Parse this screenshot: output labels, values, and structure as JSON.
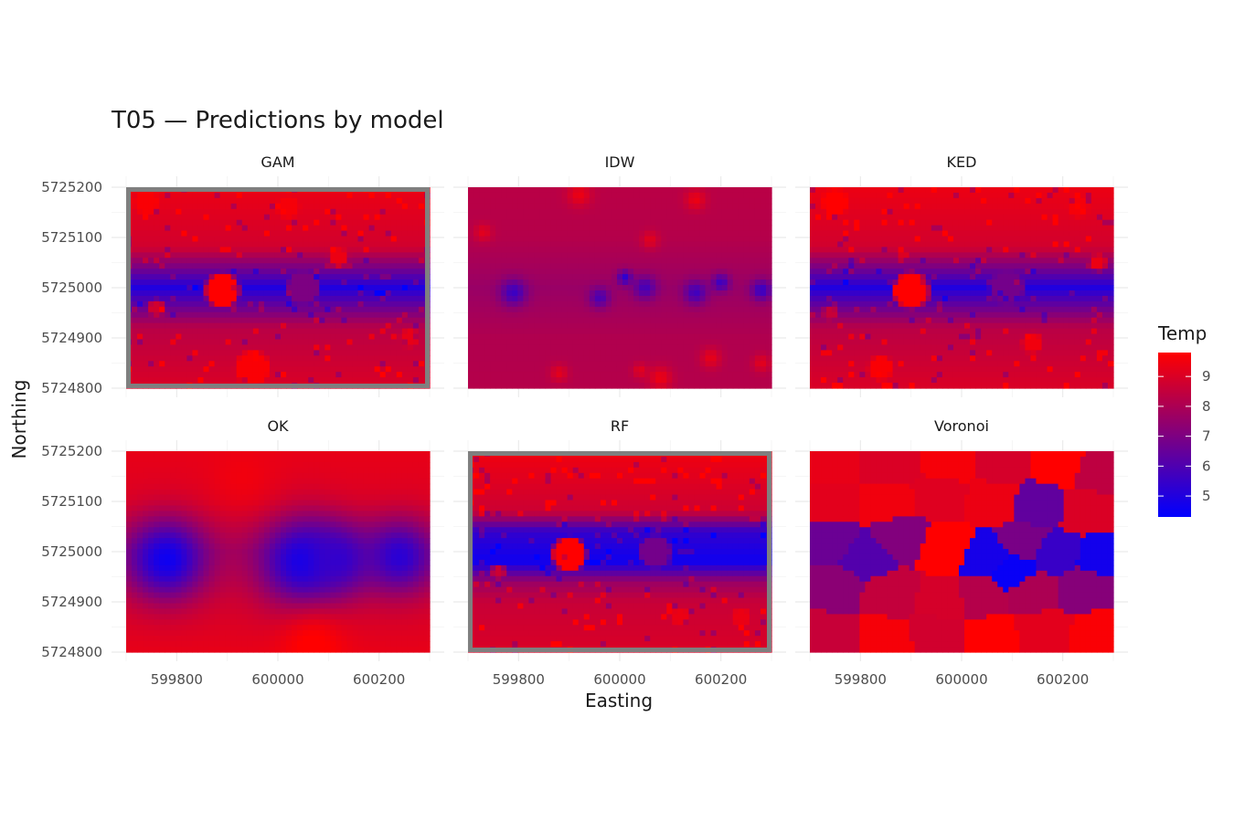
{
  "chart_data": {
    "type": "heatmap",
    "title": "T05 — Predictions by model",
    "xlabel": "Easting",
    "ylabel": "Northing",
    "xlim": [
      599700,
      600300
    ],
    "ylim": [
      5724800,
      5725200
    ],
    "x_ticks": [
      599800,
      600000,
      600200
    ],
    "x_tick_labels": [
      "599800",
      "600000",
      "600200"
    ],
    "y_ticks": [
      5724800,
      5724900,
      5725000,
      5725100,
      5725200
    ],
    "y_tick_labels": [
      "5724800",
      "5724900",
      "5725000",
      "5725100",
      "5725200"
    ],
    "grid": true,
    "legend": {
      "title": "Temp",
      "position": "right",
      "range": [
        4.3,
        9.8
      ],
      "ticks": [
        5,
        6,
        7,
        8,
        9
      ],
      "tick_labels": [
        "5",
        "6",
        "7",
        "8",
        "9"
      ],
      "low_color": "#0000ff",
      "high_color": "#ff0000"
    },
    "panels": [
      {
        "name": "GAM",
        "highlighted": true,
        "style": "blocky",
        "base": [
          {
            "y": 5725200,
            "v": 9.4
          },
          {
            "y": 5725080,
            "v": 8.8
          },
          {
            "y": 5725000,
            "v": 5.0
          },
          {
            "y": 5724920,
            "v": 8.3
          },
          {
            "y": 5724800,
            "v": 9.0
          }
        ],
        "hotspots": [
          {
            "x": 599890,
            "y": 5724995,
            "r": 30,
            "v": 9.8
          },
          {
            "x": 600050,
            "y": 5725000,
            "r": 28,
            "v": 7.0
          },
          {
            "x": 599760,
            "y": 5724960,
            "r": 12,
            "v": 8.8
          },
          {
            "x": 599950,
            "y": 5724840,
            "r": 30,
            "v": 9.7
          },
          {
            "x": 599740,
            "y": 5725170,
            "r": 20,
            "v": 9.7
          },
          {
            "x": 600020,
            "y": 5725160,
            "r": 18,
            "v": 9.6
          },
          {
            "x": 600120,
            "y": 5725060,
            "r": 15,
            "v": 9.4
          },
          {
            "x": 600260,
            "y": 5724900,
            "r": 14,
            "v": 9.3
          }
        ],
        "speckle": 0.6
      },
      {
        "name": "IDW",
        "highlighted": false,
        "style": "smooth",
        "base": [
          {
            "y": 5725200,
            "v": 8.3
          },
          {
            "y": 5725100,
            "v": 8.2
          },
          {
            "y": 5725000,
            "v": 7.6
          },
          {
            "y": 5724900,
            "v": 8.1
          },
          {
            "y": 5724800,
            "v": 8.2
          }
        ],
        "hotspots": [
          {
            "x": 599790,
            "y": 5724990,
            "r": 18,
            "v": 5.6
          },
          {
            "x": 599960,
            "y": 5724980,
            "r": 14,
            "v": 5.9
          },
          {
            "x": 600050,
            "y": 5725000,
            "r": 16,
            "v": 5.8
          },
          {
            "x": 600150,
            "y": 5724990,
            "r": 16,
            "v": 5.7
          },
          {
            "x": 600200,
            "y": 5725010,
            "r": 12,
            "v": 5.6
          },
          {
            "x": 600280,
            "y": 5724995,
            "r": 14,
            "v": 5.5
          },
          {
            "x": 600010,
            "y": 5725020,
            "r": 10,
            "v": 5.3
          },
          {
            "x": 599920,
            "y": 5725185,
            "r": 16,
            "v": 9.4
          },
          {
            "x": 600150,
            "y": 5725175,
            "r": 14,
            "v": 9.4
          },
          {
            "x": 599730,
            "y": 5725110,
            "r": 12,
            "v": 9.2
          },
          {
            "x": 600060,
            "y": 5725095,
            "r": 12,
            "v": 9.2
          },
          {
            "x": 600080,
            "y": 5724820,
            "r": 16,
            "v": 9.4
          },
          {
            "x": 600180,
            "y": 5724860,
            "r": 14,
            "v": 9.3
          },
          {
            "x": 599880,
            "y": 5724830,
            "r": 12,
            "v": 9.2
          },
          {
            "x": 600040,
            "y": 5724835,
            "r": 10,
            "v": 9.2
          },
          {
            "x": 600280,
            "y": 5724850,
            "r": 12,
            "v": 9.2
          }
        ],
        "speckle": 0.0
      },
      {
        "name": "KED",
        "highlighted": false,
        "style": "blocky",
        "base": [
          {
            "y": 5725200,
            "v": 9.4
          },
          {
            "y": 5725080,
            "v": 8.8
          },
          {
            "y": 5725000,
            "v": 5.0
          },
          {
            "y": 5724920,
            "v": 8.3
          },
          {
            "y": 5724800,
            "v": 9.0
          }
        ],
        "hotspots": [
          {
            "x": 599900,
            "y": 5724995,
            "r": 32,
            "v": 9.8
          },
          {
            "x": 600090,
            "y": 5725000,
            "r": 30,
            "v": 6.8
          },
          {
            "x": 599750,
            "y": 5725170,
            "r": 22,
            "v": 9.8
          },
          {
            "x": 599840,
            "y": 5724840,
            "r": 20,
            "v": 9.7
          },
          {
            "x": 600140,
            "y": 5724890,
            "r": 16,
            "v": 9.5
          },
          {
            "x": 600230,
            "y": 5725160,
            "r": 16,
            "v": 9.6
          },
          {
            "x": 599740,
            "y": 5724950,
            "r": 10,
            "v": 8.6
          },
          {
            "x": 600270,
            "y": 5725050,
            "r": 12,
            "v": 9.4
          }
        ],
        "speckle": 0.6
      },
      {
        "name": "OK",
        "highlighted": false,
        "style": "smooth",
        "base": [
          {
            "y": 5725200,
            "v": 9.3
          },
          {
            "y": 5725100,
            "v": 9.1
          },
          {
            "y": 5725000,
            "v": 8.2
          },
          {
            "y": 5724900,
            "v": 8.9
          },
          {
            "y": 5724800,
            "v": 9.3
          }
        ],
        "hotspots": [
          {
            "x": 599780,
            "y": 5724985,
            "r": 55,
            "v": 4.6
          },
          {
            "x": 600050,
            "y": 5724980,
            "r": 60,
            "v": 4.7
          },
          {
            "x": 600240,
            "y": 5724990,
            "r": 50,
            "v": 5.2
          },
          {
            "x": 600120,
            "y": 5724985,
            "r": 45,
            "v": 5.4
          },
          {
            "x": 600070,
            "y": 5724810,
            "r": 45,
            "v": 9.9
          },
          {
            "x": 599930,
            "y": 5725150,
            "r": 45,
            "v": 9.5
          }
        ],
        "speckle": 0.0
      },
      {
        "name": "RF",
        "highlighted": true,
        "style": "blocky",
        "base": [
          {
            "y": 5725200,
            "v": 9.5
          },
          {
            "y": 5725080,
            "v": 8.7
          },
          {
            "y": 5725040,
            "v": 5.4
          },
          {
            "y": 5724980,
            "v": 4.6
          },
          {
            "y": 5724940,
            "v": 7.6
          },
          {
            "y": 5724900,
            "v": 8.6
          },
          {
            "y": 5724800,
            "v": 9.0
          }
        ],
        "hotspots": [
          {
            "x": 599900,
            "y": 5724995,
            "r": 30,
            "v": 9.8
          },
          {
            "x": 600070,
            "y": 5725000,
            "r": 28,
            "v": 6.8
          },
          {
            "x": 599760,
            "y": 5724960,
            "r": 10,
            "v": 8.7
          },
          {
            "x": 600120,
            "y": 5724870,
            "r": 14,
            "v": 9.4
          },
          {
            "x": 600240,
            "y": 5724870,
            "r": 14,
            "v": 9.4
          }
        ],
        "speckle": 0.6
      },
      {
        "name": "Voronoi",
        "highlighted": false,
        "style": "voronoi",
        "sites": [
          {
            "x": 599740,
            "y": 5725180,
            "v": 9.3
          },
          {
            "x": 599860,
            "y": 5725170,
            "v": 9.0
          },
          {
            "x": 599980,
            "y": 5725180,
            "v": 9.6
          },
          {
            "x": 600080,
            "y": 5725175,
            "v": 8.9
          },
          {
            "x": 600190,
            "y": 5725180,
            "v": 9.8
          },
          {
            "x": 600280,
            "y": 5725160,
            "v": 8.4
          },
          {
            "x": 599740,
            "y": 5725100,
            "v": 9.2
          },
          {
            "x": 599850,
            "y": 5725100,
            "v": 9.5
          },
          {
            "x": 599960,
            "y": 5725110,
            "v": 9.1
          },
          {
            "x": 600060,
            "y": 5725100,
            "v": 9.4
          },
          {
            "x": 600150,
            "y": 5725090,
            "v": 6.4
          },
          {
            "x": 600250,
            "y": 5725080,
            "v": 9.0
          },
          {
            "x": 599740,
            "y": 5725020,
            "v": 6.6
          },
          {
            "x": 599810,
            "y": 5724990,
            "v": 6.1
          },
          {
            "x": 599880,
            "y": 5725030,
            "v": 7.1
          },
          {
            "x": 599970,
            "y": 5725010,
            "v": 9.9
          },
          {
            "x": 600050,
            "y": 5724990,
            "v": 4.8
          },
          {
            "x": 600120,
            "y": 5725020,
            "v": 6.9
          },
          {
            "x": 600190,
            "y": 5724995,
            "v": 5.5
          },
          {
            "x": 600270,
            "y": 5724990,
            "v": 4.7
          },
          {
            "x": 600100,
            "y": 5724960,
            "v": 4.5
          },
          {
            "x": 599750,
            "y": 5724930,
            "v": 7.3
          },
          {
            "x": 599860,
            "y": 5724910,
            "v": 8.5
          },
          {
            "x": 599960,
            "y": 5724900,
            "v": 8.9
          },
          {
            "x": 600040,
            "y": 5724910,
            "v": 8.2
          },
          {
            "x": 600140,
            "y": 5724920,
            "v": 8.0
          },
          {
            "x": 600240,
            "y": 5724930,
            "v": 7.2
          },
          {
            "x": 599740,
            "y": 5724830,
            "v": 8.6
          },
          {
            "x": 599850,
            "y": 5724830,
            "v": 9.6
          },
          {
            "x": 599950,
            "y": 5724840,
            "v": 8.8
          },
          {
            "x": 600060,
            "y": 5724830,
            "v": 9.9
          },
          {
            "x": 600160,
            "y": 5724840,
            "v": 9.2
          },
          {
            "x": 600270,
            "y": 5724830,
            "v": 9.7
          }
        ]
      }
    ]
  }
}
